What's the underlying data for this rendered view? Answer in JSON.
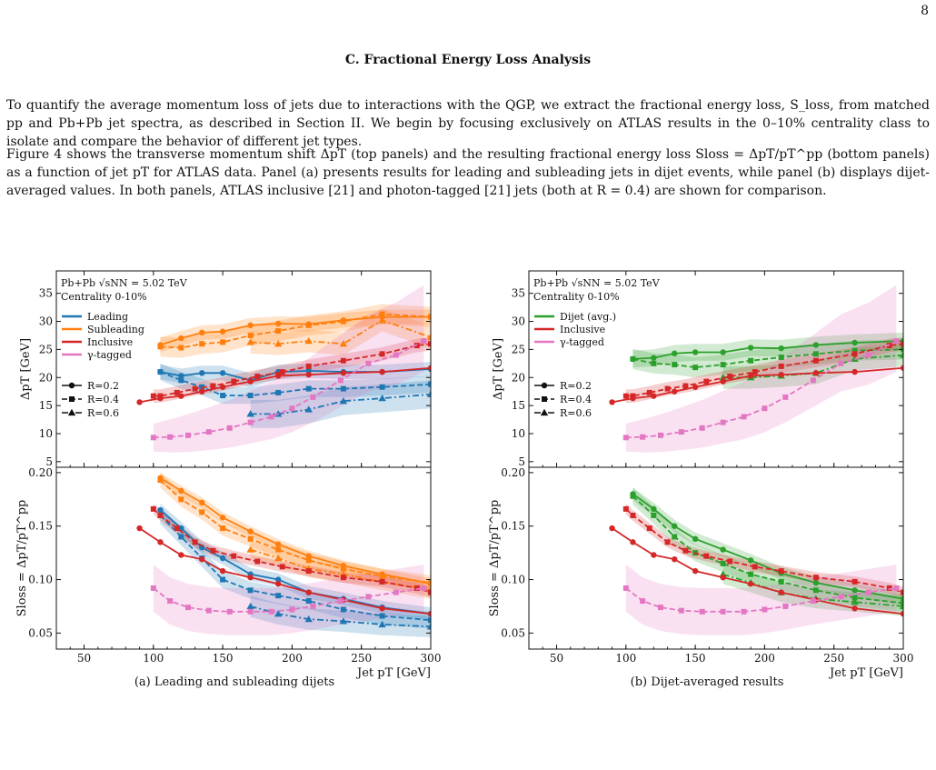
{
  "page_number": "8",
  "section_title": "C.   Fractional Energy Loss Analysis",
  "para1": "To quantify the average momentum loss of jets due to interactions with the QGP, we extract the fractional energy loss, S_loss, from matched pp and Pb+Pb jet spectra, as described in Section II. We begin by focusing exclusively on ATLAS results in the 0–10% centrality class to isolate and compare the behavior of different jet types.",
  "para2": "Figure 4 shows the transverse momentum shift ΔpT (top panels) and the resulting fractional energy loss Sloss = ΔpT/pT^pp (bottom panels) as a function of jet pT for ATLAS data. Panel (a) presents results for leading and subleading jets in dijet events, while panel (b) displays dijet-averaged values. In both panels, ATLAS inclusive [21] and photon-tagged [21] jets (both at R = 0.4) are shown for comparison.",
  "caption_a": "(a) Leading and subleading dijets",
  "caption_b": "(b) Dijet-averaged results",
  "colors": {
    "leading": "#1f77b4",
    "subleading": "#ff7f0e",
    "inclusive": "#d62728",
    "gamma": "#e377c2",
    "dijet": "#2ca02c"
  },
  "chart_data": [
    {
      "type": "line",
      "panel": "a",
      "annotation": [
        "Pb+Pb √sNN = 5.02 TeV",
        "Centrality 0-10%"
      ],
      "xlabel": "Jet pT [GeV]",
      "ylabel_top": "ΔpT [GeV]",
      "ylabel_bottom": "Sloss = ΔpT/pT^pp",
      "xlim": [
        30,
        300
      ],
      "xticks": [
        50,
        100,
        150,
        200,
        250,
        300
      ],
      "ylim_top": [
        4,
        39
      ],
      "yticks_top": [
        5,
        10,
        15,
        20,
        25,
        30,
        35
      ],
      "ylim_bottom": [
        0.035,
        0.205
      ],
      "yticks_bottom": [
        0.05,
        0.1,
        0.15,
        0.2
      ],
      "legend_colors": [
        "Leading",
        "Subleading",
        "Inclusive",
        "γ-tagged"
      ],
      "legend_styles": [
        "R=0.2",
        "R=0.4",
        "R=0.6"
      ],
      "series": [
        {
          "name": "Leading",
          "color": "leading",
          "style": "R=0.2",
          "x": [
            105,
            120,
            135,
            150,
            170,
            190,
            212,
            237,
            265,
            300
          ],
          "top": [
            21,
            20.3,
            20.8,
            20.8,
            19.5,
            21,
            21.2,
            21,
            21,
            21.5
          ],
          "bottom": [
            0.165,
            0.148,
            0.13,
            0.12,
            0.105,
            0.1,
            0.088,
            0.082,
            0.074,
            0.068
          ],
          "band_top": 1.3,
          "band_bottom": 0.006
        },
        {
          "name": "Leading",
          "color": "leading",
          "style": "R=0.4",
          "x": [
            105,
            120,
            135,
            150,
            170,
            190,
            212,
            237,
            265,
            300
          ],
          "top": [
            21,
            19.5,
            18.3,
            16.8,
            16.8,
            17.3,
            18,
            18,
            18.3,
            18.8
          ],
          "bottom": [
            0.16,
            0.14,
            0.12,
            0.1,
            0.09,
            0.085,
            0.08,
            0.072,
            0.066,
            0.062
          ],
          "band_top": 1.5,
          "band_bottom": 0.008
        },
        {
          "name": "Leading",
          "color": "leading",
          "style": "R=0.6",
          "x": [
            170,
            190,
            212,
            237,
            265,
            300
          ],
          "top": [
            13.5,
            13.5,
            14.3,
            15.8,
            16.3,
            17
          ],
          "bottom": [
            0.075,
            0.068,
            0.063,
            0.061,
            0.058,
            0.056
          ],
          "band_top": 2.5,
          "band_bottom": 0.01
        },
        {
          "name": "Subleading",
          "color": "subleading",
          "style": "R=0.2",
          "x": [
            105,
            120,
            135,
            150,
            170,
            190,
            212,
            237,
            265,
            300
          ],
          "top": [
            25.8,
            27,
            28,
            28.2,
            29.3,
            29.6,
            29.5,
            30.2,
            30.8,
            30.8
          ],
          "bottom": [
            0.195,
            0.183,
            0.172,
            0.158,
            0.145,
            0.133,
            0.122,
            0.113,
            0.105,
            0.096
          ],
          "band_top": 1.3,
          "band_bottom": 0.005
        },
        {
          "name": "Subleading",
          "color": "subleading",
          "style": "R=0.4",
          "x": [
            105,
            120,
            135,
            150,
            170,
            190,
            212,
            237,
            265,
            300
          ],
          "top": [
            25.5,
            25.3,
            26,
            26.3,
            27.5,
            28.3,
            29.3,
            30,
            31.3,
            30.8
          ],
          "bottom": [
            0.193,
            0.175,
            0.163,
            0.148,
            0.138,
            0.128,
            0.118,
            0.11,
            0.103,
            0.097
          ],
          "band_top": 1.8,
          "band_bottom": 0.007
        },
        {
          "name": "Subleading",
          "color": "subleading",
          "style": "R=0.6",
          "x": [
            170,
            190,
            212,
            237,
            265,
            300
          ],
          "top": [
            26.3,
            26,
            26.5,
            26,
            30.2,
            27.2
          ],
          "bottom": [
            0.128,
            0.12,
            0.11,
            0.105,
            0.098,
            0.09
          ],
          "band_top": 2,
          "band_bottom": 0.008
        },
        {
          "name": "Inclusive",
          "color": "inclusive",
          "style": "R=0.2",
          "x": [
            90,
            105,
            120,
            135,
            150,
            170,
            190,
            212,
            237,
            265,
            300
          ],
          "top": [
            15.6,
            16.3,
            16.7,
            17.5,
            18.3,
            19.3,
            20.3,
            20.5,
            20.8,
            21,
            21.7
          ],
          "bottom": [
            0.148,
            0.135,
            0.123,
            0.119,
            0.108,
            0.102,
            0.096,
            0.088,
            0.081,
            0.073,
            0.068
          ],
          "band_top": 0,
          "band_bottom": 0
        },
        {
          "name": "Inclusive",
          "color": "inclusive",
          "style": "R=0.4",
          "x": [
            100,
            105,
            117,
            130,
            143,
            158,
            175,
            193,
            212,
            237,
            265,
            290,
            300
          ],
          "top": [
            16.7,
            16.7,
            17.3,
            18,
            18.5,
            19.3,
            20.2,
            21,
            22,
            23,
            24.2,
            25.7,
            26
          ],
          "bottom": [
            0.166,
            0.16,
            0.148,
            0.135,
            0.127,
            0.122,
            0.117,
            0.112,
            0.108,
            0.102,
            0.098,
            0.092,
            0.088
          ],
          "band_top": 1.2,
          "band_bottom": 0.005
        },
        {
          "name": "γ-tagged",
          "color": "gamma",
          "style": "R=0.4",
          "x": [
            100,
            112,
            125,
            140,
            155,
            170,
            185,
            200,
            215,
            235,
            255,
            275,
            295
          ],
          "top": [
            9.3,
            9.4,
            9.7,
            10.3,
            11,
            12,
            13,
            14.5,
            16.5,
            19.5,
            22.5,
            24,
            26.5
          ],
          "bottom": [
            0.092,
            0.08,
            0.074,
            0.071,
            0.07,
            0.07,
            0.07,
            0.072,
            0.075,
            0.08,
            0.084,
            0.088,
            0.092
          ],
          "band_top": 2.5,
          "band_bottom": 0.022
        }
      ]
    },
    {
      "type": "line",
      "panel": "b",
      "annotation": [
        "Pb+Pb √sNN = 5.02 TeV",
        "Centrality 0-10%"
      ],
      "xlabel": "Jet pT [GeV]",
      "ylabel_top": "ΔpT [GeV]",
      "ylabel_bottom": "Sloss = ΔpT/pT^pp",
      "xlim": [
        30,
        300
      ],
      "xticks": [
        50,
        100,
        150,
        200,
        250,
        300
      ],
      "ylim_top": [
        4,
        39
      ],
      "yticks_top": [
        5,
        10,
        15,
        20,
        25,
        30,
        35
      ],
      "ylim_bottom": [
        0.035,
        0.205
      ],
      "yticks_bottom": [
        0.05,
        0.1,
        0.15,
        0.2
      ],
      "legend_colors": [
        "Dijet (avg.)",
        "Inclusive",
        "γ-tagged"
      ],
      "legend_styles": [
        "R=0.2",
        "R=0.4",
        "R=0.6"
      ],
      "series": [
        {
          "name": "Dijet (avg.)",
          "color": "dijet",
          "style": "R=0.2",
          "x": [
            105,
            120,
            135,
            150,
            170,
            190,
            212,
            237,
            265,
            300
          ],
          "top": [
            23.3,
            23.5,
            24.3,
            24.5,
            24.5,
            25.3,
            25.2,
            25.8,
            26.2,
            26.5
          ],
          "bottom": [
            0.18,
            0.166,
            0.15,
            0.138,
            0.128,
            0.118,
            0.106,
            0.097,
            0.09,
            0.082
          ],
          "band_top": 1.5,
          "band_bottom": 0.006
        },
        {
          "name": "Dijet (avg.)",
          "color": "dijet",
          "style": "R=0.4",
          "x": [
            105,
            120,
            135,
            150,
            170,
            190,
            212,
            237,
            265,
            300
          ],
          "top": [
            23.3,
            22.5,
            22.3,
            21.8,
            22.3,
            23,
            23.6,
            24.2,
            24.8,
            25
          ],
          "bottom": [
            0.178,
            0.16,
            0.14,
            0.125,
            0.115,
            0.105,
            0.098,
            0.09,
            0.083,
            0.078
          ],
          "band_top": 1.8,
          "band_bottom": 0.008
        },
        {
          "name": "Dijet (avg.)",
          "color": "dijet",
          "style": "R=0.6",
          "x": [
            170,
            190,
            212,
            237,
            265,
            300
          ],
          "top": [
            20,
            20,
            20.3,
            20.8,
            23.3,
            24
          ],
          "bottom": [
            0.105,
            0.097,
            0.088,
            0.082,
            0.079,
            0.075
          ],
          "band_top": 2,
          "band_bottom": 0.009
        },
        {
          "name": "Inclusive",
          "color": "inclusive",
          "style": "R=0.2",
          "x": [
            90,
            105,
            120,
            135,
            150,
            170,
            190,
            212,
            237,
            265,
            300
          ],
          "top": [
            15.6,
            16.3,
            16.7,
            17.5,
            18.3,
            19.3,
            20.3,
            20.5,
            20.8,
            21,
            21.7
          ],
          "bottom": [
            0.148,
            0.135,
            0.123,
            0.119,
            0.108,
            0.102,
            0.096,
            0.088,
            0.081,
            0.073,
            0.068
          ],
          "band_top": 0,
          "band_bottom": 0
        },
        {
          "name": "Inclusive",
          "color": "inclusive",
          "style": "R=0.4",
          "x": [
            100,
            105,
            117,
            130,
            143,
            158,
            175,
            193,
            212,
            237,
            265,
            290,
            300
          ],
          "top": [
            16.7,
            16.7,
            17.3,
            18,
            18.5,
            19.3,
            20.2,
            21,
            22,
            23,
            24.2,
            25.7,
            26
          ],
          "bottom": [
            0.166,
            0.16,
            0.148,
            0.135,
            0.127,
            0.122,
            0.117,
            0.112,
            0.108,
            0.102,
            0.098,
            0.092,
            0.088
          ],
          "band_top": 1.2,
          "band_bottom": 0.005
        },
        {
          "name": "γ-tagged",
          "color": "gamma",
          "style": "R=0.4",
          "x": [
            100,
            112,
            125,
            140,
            155,
            170,
            185,
            200,
            215,
            235,
            255,
            275,
            295
          ],
          "top": [
            9.3,
            9.4,
            9.7,
            10.3,
            11,
            12,
            13,
            14.5,
            16.5,
            19.5,
            22.5,
            24,
            26.5
          ],
          "bottom": [
            0.092,
            0.08,
            0.074,
            0.071,
            0.07,
            0.07,
            0.07,
            0.072,
            0.075,
            0.08,
            0.084,
            0.088,
            0.092
          ],
          "band_top": 2.5,
          "band_bottom": 0.022
        }
      ]
    }
  ]
}
